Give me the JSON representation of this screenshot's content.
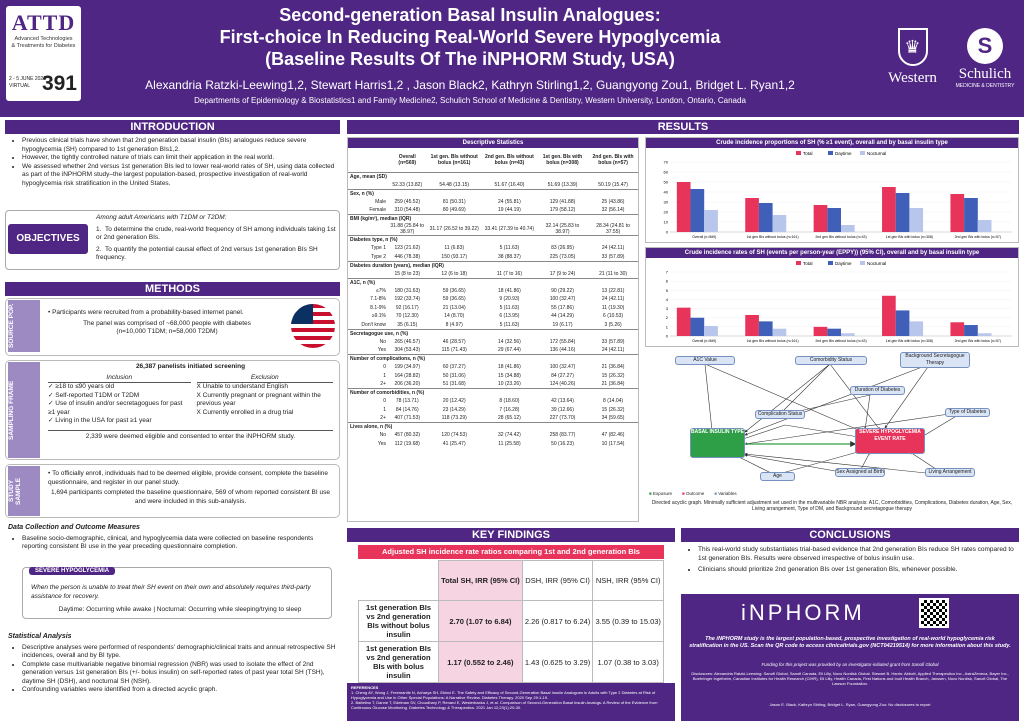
{
  "header": {
    "logo_attd": "ATTD",
    "logo_sub1": "Advanced Technologies",
    "logo_sub2": "& Treatments for Diabetes",
    "logo_date": "2 - 5 JUNE 2021",
    "logo_virtual": "VIRTUAL",
    "poster_number": "391",
    "title1": "Second-generation Basal Insulin Analogues:",
    "title2": "First-choice In Reducing Real-World Severe Hypoglycemia",
    "title3": "(Baseline Results Of The iNPHORM Study, USA)",
    "authors": "Alexandria Ratzki-Leewing1,2, Stewart Harris1,2 , Jason Black2, Kathryn Stirling1,2, Guangyong Zou1, Bridget L. Ryan1,2",
    "depts": "Departments of Epidemiology & Biostatistics1 and Family Medicine2, Schulich School of Medicine & Dentistry, Western University, London, Ontario, Canada",
    "western": "Western",
    "schulich": "Schulich",
    "schulich_sub": "MEDICINE & DENTISTRY"
  },
  "intro": {
    "heading": "INTRODUCTION",
    "b1": "Previous clinical trials have shown that 2nd generation basal insulin (BIs) analogues reduce severe hypoglycemia (SH) compared to 1st generation BIs1,2.",
    "b2": "However, the tightly controlled nature of trials can limit their application in the real world.",
    "b3": "We assessed whether 2nd versus 1st generation BIs led to lower real-world rates of SH, using data collected as part of the iNPHORM study–the largest population-based, prospective investigation of real-world hypoglycemia risk stratification in the United States."
  },
  "objectives": {
    "label": "OBJECTIVES",
    "lead": "Among adult Americans with T1DM or T2DM:",
    "o1": "To determine the crude, real-world frequency of SH among individuals taking 1st or 2nd generation BIs.",
    "o2": "To quantify the potential causal effect of 2nd versus 1st generation BIs SH frequency."
  },
  "methods": {
    "heading": "METHODS",
    "side1": "SOURCE POP.",
    "src1": "Participants were recruited from a probability-based internet panel.",
    "src2": "The panel was comprised of ~68,000 people with diabetes",
    "src3": "(n=10,000 T1DM; n=58,000 T2DM)",
    "side2": "SAMPLING FRAME",
    "screen": "26,387 panelists initiated screening",
    "incl": "Inclusion",
    "excl": "Exclusion",
    "i1": "≥18 to ≤90 years old",
    "i2": "Self-reported T1DM or T2DM",
    "i3": "Use of insulin and/or secretagogues for past ≥1 year",
    "i4": "Living in the USA for past ≥1 year",
    "e1": "Unable to understand English",
    "e2": "Currently pregnant or pregnant within the previous year",
    "e3": "Currently enrolled in a drug trial",
    "eligible": "2,339 were deemed eligible and consented to enter the iNPHORM study.",
    "side3": "STUDY SAMPLE",
    "s1": "To officially enroll, individuals had to be deemed eligible, provide consent, complete the baseline questionnaire, and register in our panel study.",
    "s2": "1,694 participants completed the baseline questionnaire, 569 of whom reported consistent BI use and were included in this sub-analysis.",
    "dc_title": "Data Collection and Outcome Measures",
    "dc1": "Baseline socio-demographic, clinical, and hypoglycemia data were collected on baseline respondents reporting consistent BI use in the year preceding questionnaire completion.",
    "sh_label": "SEVERE HYPOGLYCEMIA",
    "sh_def": "When the person is unable to treat their SH event on their own and absolutely requires third-party assistance for recovery.",
    "sh_day": "Daytime: Occurring while awake   |   Nocturnal: Occurring while sleeping/trying to sleep",
    "sa_title": "Statistical Analysis",
    "sa1": "Descriptive analyses were performed of respondents' demographic/clinical traits and annual retrospective SH incidences, overall and by BI type.",
    "sa2": "Complete case multivariable negative binomial regression (NBR) was used to isolate the effect of 2nd generation versus 1st generation BIs (+/- bolus insulin) on self-reported rates of past year total SH (TSH), daytime SH (DSH), and nocturnal SH (NSH).",
    "sa3": "Confounding variables were identified from a directed acyclic graph."
  },
  "results": {
    "heading": "RESULTS",
    "desc_title": "Descriptive Statistics",
    "cols": [
      "Overall (n=569)",
      "1st gen. BIs without bolus (n=161)",
      "2nd gen. BIs without bolus (n=43)",
      "1st gen. BIs with bolus (n=308)",
      "2nd gen. BIs with bolus (n=57)"
    ],
    "rows": [
      {
        "s": "Age, mean (SD)"
      },
      {
        "l": "",
        "v": [
          "52.33 (13.82)",
          "54.48 (13.15)",
          "51.67 (16.40)",
          "51.69 (13.39)",
          "50.19 (15.47)"
        ]
      },
      {
        "s": "Sex, n (%)"
      },
      {
        "l": "Male",
        "v": [
          "259 (45.52)",
          "81 (50.31)",
          "24 (55.81)",
          "129 (41.88)",
          "25 (43.86)"
        ]
      },
      {
        "l": "Female",
        "v": [
          "310 (54.48)",
          "80 (49.69)",
          "19 (44.19)",
          "179 (58.12)",
          "32 (56.14)"
        ]
      },
      {
        "s": "BMI (kg/m²), median (IQR)"
      },
      {
        "l": "",
        "v": [
          "31.88 (25.84 to 38.97)",
          "31.17 (26.52 to 39.22)",
          "33.41 (27.39 to 40.74)",
          "32.14 (25.83 to 38.97)",
          "28.34 (24.81 to 37.55)"
        ]
      },
      {
        "s": "Diabetes type, n (%)"
      },
      {
        "l": "Type 1",
        "v": [
          "123 (21.62)",
          "11 (6.83)",
          "5 (11.63)",
          "83 (26.95)",
          "24 (42.11)"
        ]
      },
      {
        "l": "Type 2",
        "v": [
          "446 (78.38)",
          "150 (93.17)",
          "38 (88.37)",
          "225 (73.05)",
          "33 (57.89)"
        ]
      },
      {
        "s": "Diabetes duration (years), median (IQR)"
      },
      {
        "l": "",
        "v": [
          "15 (8 to 23)",
          "12 (6 to 18)",
          "11 (7 to 16)",
          "17 (9 to 24)",
          "21 (11 to 30)"
        ]
      },
      {
        "s": "A1C, n (%)"
      },
      {
        "l": "≤7%",
        "v": [
          "180 (31.63)",
          "59 (36.65)",
          "18 (41.86)",
          "90 (29.22)",
          "13 (22.81)"
        ]
      },
      {
        "l": "7.1-8%",
        "v": [
          "192 (33.74)",
          "59 (36.65)",
          "9 (20.93)",
          "100 (32.47)",
          "24 (42.11)"
        ]
      },
      {
        "l": "8.1-9%",
        "v": [
          "92 (16.17)",
          "21 (13.04)",
          "5 (11.63)",
          "55 (17.86)",
          "11 (19.30)"
        ]
      },
      {
        "l": "≥9.1%",
        "v": [
          "70 (12.30)",
          "14 (8.70)",
          "6 (13.95)",
          "44 (14.29)",
          "6 (10.53)"
        ]
      },
      {
        "l": "Don't know",
        "v": [
          "35 (6.15)",
          "8 (4.97)",
          "5 (11.63)",
          "19 (6.17)",
          "3 (5.26)"
        ]
      },
      {
        "s": "Secretagogue use, n (%)"
      },
      {
        "l": "No",
        "v": [
          "265 (46.57)",
          "46 (28.57)",
          "14 (32.56)",
          "172 (55.84)",
          "33 (57.89)"
        ]
      },
      {
        "l": "Yes",
        "v": [
          "304 (53.43)",
          "115 (71.43)",
          "29 (67.44)",
          "136 (44.16)",
          "24 (42.11)"
        ]
      },
      {
        "s": "Number of complications, n (%)"
      },
      {
        "l": "0",
        "v": [
          "199 (34.97)",
          "60 (37.27)",
          "18 (41.86)",
          "100 (32.47)",
          "21 (36.84)"
        ]
      },
      {
        "l": "1",
        "v": [
          "164 (28.82)",
          "50 (31.06)",
          "15 (34.88)",
          "84 (27.27)",
          "15 (26.32)"
        ]
      },
      {
        "l": "2+",
        "v": [
          "206 (36.20)",
          "51 (31.68)",
          "10 (23.26)",
          "124 (40.26)",
          "21 (36.84)"
        ]
      },
      {
        "s": "Number of comorbidities, n (%)"
      },
      {
        "l": "0",
        "v": [
          "78 (13.71)",
          "20 (12.42)",
          "8 (18.60)",
          "42 (13.64)",
          "8 (14.04)"
        ]
      },
      {
        "l": "1",
        "v": [
          "84 (14.76)",
          "23 (14.29)",
          "7 (16.28)",
          "39 (12.66)",
          "15 (26.32)"
        ]
      },
      {
        "l": "2+",
        "v": [
          "407 (71.53)",
          "118 (73.29)",
          "28 (65.12)",
          "227 (73.70)",
          "34 (59.65)"
        ]
      },
      {
        "s": "Lives alone, n (%)"
      },
      {
        "l": "No",
        "v": [
          "457 (80.32)",
          "120 (74.53)",
          "32 (74.42)",
          "258 (83.77)",
          "47 (82.46)"
        ]
      },
      {
        "l": "Yes",
        "v": [
          "112 (19.68)",
          "41 (25.47)",
          "11 (25.58)",
          "50 (16.23)",
          "10 (17.54)"
        ]
      }
    ],
    "chart1_title": "Crude incidence proportions of SH (% ≥1 event), overall and by basal insulin type",
    "chart2_title": "Crude incidence rates of SH (events per person-year (EPPY)) (95% CI), overall and by basal insulin type",
    "legend": [
      "Total",
      "Daytime",
      "Nocturnal"
    ],
    "dag_caption": "Directed acyclic graph. Minimally sufficient adjustment set used in the multivariable NBR analysis: A1C, Comorbidities, Complications, Diabetes duration, Age, Sex, Living arrangement, Type of DM, and Background secretagogue therapy",
    "dag_nodes": {
      "a1c": "A1C Value",
      "comorb": "Comorbidity Status",
      "bst": "Background Secretagogue Therapy",
      "dur": "Duration of Diabetes",
      "comp": "Complication Status",
      "tod": "Type of Diabetes",
      "basal": "BASAL INSULIN TYPE",
      "sh": "SEVERE HYPOGLYCEMIA EVENT RATE",
      "age": "Age",
      "sex": "Sex Assigned at Birth",
      "living": "Living Arrangement"
    },
    "dag_legend": [
      "Exposure",
      "Outcome",
      "Variables"
    ]
  },
  "chart_data": [
    {
      "type": "bar",
      "categories": [
        "Overall (n=569)",
        "1st gen BIs without bolus (n=161)",
        "2nd gen BIs without bolus (n=43)",
        "1st gen BIs with bolus (n=308)",
        "2nd gen BIs with bolus (n=57)"
      ],
      "series": [
        {
          "name": "Total",
          "values": [
            50,
            34,
            27,
            45,
            38
          ]
        },
        {
          "name": "Daytime",
          "values": [
            43,
            29,
            24,
            39,
            34
          ]
        },
        {
          "name": "Nocturnal",
          "values": [
            22,
            17,
            7,
            24,
            12
          ]
        }
      ],
      "ylim": [
        0,
        70
      ],
      "colors": [
        "#e8345a",
        "#3f5fb8",
        "#b9c6eb"
      ]
    },
    {
      "type": "bar",
      "categories": [
        "Overall (n=569)",
        "1st gen BIs without bolus (n=161)",
        "2nd gen BIs without bolus (n=43)",
        "1st gen BIs with bolus (n=308)",
        "2nd gen BIs with bolus (n=57)"
      ],
      "series": [
        {
          "name": "Total",
          "values": [
            3.1,
            2.3,
            1.0,
            4.4,
            1.5
          ]
        },
        {
          "name": "Daytime",
          "values": [
            2.0,
            1.6,
            0.8,
            2.8,
            1.2
          ]
        },
        {
          "name": "Nocturnal",
          "values": [
            1.1,
            0.8,
            0.3,
            1.6,
            0.3
          ]
        }
      ],
      "ylim": [
        0,
        7
      ],
      "colors": [
        "#e8345a",
        "#3f5fb8",
        "#b9c6eb"
      ]
    }
  ],
  "findings": {
    "heading": "KEY FINDINGS",
    "sub": "Adjusted SH incidence rate ratios comparing 1st and 2nd generation BIs",
    "h1": "Total SH, IRR (95% CI)",
    "h2": "DSH, IRR (95% CI)",
    "h3": "NSH, IRR (95% CI)",
    "r1": "1st generation BIs vs 2nd generation BIs without bolus insulin",
    "r1v": [
      "2.70 (1.07 to 6.84)",
      "2.26 (0.817 to 6.24)",
      "3.55 (0.39 to 15.03)"
    ],
    "r2": "1st generation BIs vs 2nd generation BIs with bolus insulin",
    "r2v": [
      "1.17 (0.552 to 2.46)",
      "1.43 (0.625 to 3.29)",
      "1.07 (0.38 to 3.03)"
    ],
    "refs_title": "REFERENCES",
    "refs1": "1. Cheng AY, Wong J, Freemantle N, Acharya SH, Ekinci E. The Safety and Efficacy of Second-Generation Basal Insulin Analogues in Adults with Type 2 Diabetes at Risk of Hypoglycemia and Use in Other Special Populations: A Narrative Review. Diabetes Therapy. 2020 Sep 29:1-19.",
    "refs2": "2. Battelino T, Danne T, Edelman SV, Choudhary P, Renard E, Westerbacka J, et al. Comparison of Second-Generation Basal Insulin Analogs: A Review of the Evidence from Continuous Glucose Monitoring. Diabetes Technology & Therapeutics. 2021 Jan 12;23(1):20-30."
  },
  "conclusions": {
    "heading": "CONCLUSIONS",
    "c1": "This real-world study substantiates trial-based evidence that 2nd generation BIs reduce SH rates compared to 1st generation BIs. Results were observed irrespective of bolus insulin use.",
    "c2": "Clinicians should prioritize 2nd generation BIs over 1st generation BIs, whenever possible.",
    "inphorm": "iNPHORM",
    "blurb": "The iNPHORM study is the largest population-based, prospective investigation of real-world hypoglycemia risk stratification in the US. Scan the QR code to access clinicaltrials.gov (NCT04219514) for more information about this study.",
    "funding": "Funding for this project was provided by an investigator-initiated grant from Sanofi Global",
    "disclosures": "Disclosures: Alexandria Ratzki-Leewing: Sanofi Global, Sanofi Canada, Eli Lilly, Novo Nordisk Global. Stewart B. Harris: Abbott, Applied Therapeutics Inc., AstraZeneca, Bayer Inc., Boehringer Ingelheim, Canadian Institutes for Health Research (CIHR), Eli Lilly, Health Canada, First Nations and Inuit Health Branch, Janssen, Novo Nordisk, Sanofi Global, The Lawson Foundation.",
    "disclosures2": "Jason E. Black, Kathryn Stirling, Bridget L. Ryan, Guangyong Zou: No disclosures to report"
  }
}
